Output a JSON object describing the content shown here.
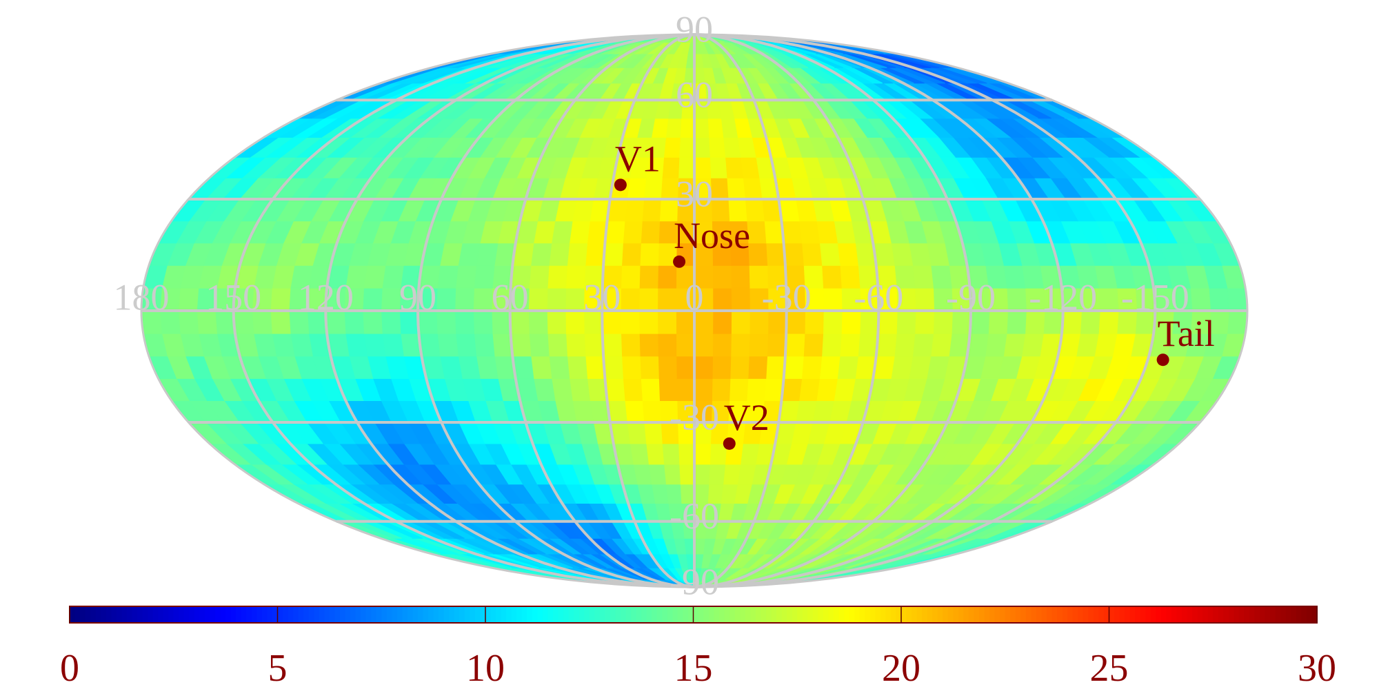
{
  "map": {
    "projection": "mollweide",
    "colormap": "jet",
    "longitude_labels": [
      "180",
      "150",
      "120",
      "90",
      "60",
      "30",
      "0",
      "-30",
      "-60",
      "-90",
      "-120",
      "-150"
    ],
    "latitude_labels": [
      "90",
      "60",
      "30",
      "-30",
      "-60",
      "-90"
    ],
    "markers": [
      {
        "name": "V1",
        "lon": 27,
        "lat": 34
      },
      {
        "name": "Nose",
        "lon": 5,
        "lat": 13
      },
      {
        "name": "V2",
        "lon": -13,
        "lat": -36
      },
      {
        "name": "Tail",
        "lon": -155,
        "lat": -13
      }
    ],
    "field_description_hotspots": [
      {
        "lon": -10,
        "lat": 10,
        "value": 22
      },
      {
        "lon": 0,
        "lat": -15,
        "value": 21
      },
      {
        "lon": -30,
        "lat": 15,
        "value": 19
      },
      {
        "lon": -135,
        "lat": -15,
        "value": 19
      },
      {
        "lon": 140,
        "lat": 5,
        "value": 16
      },
      {
        "lon": 110,
        "lat": -45,
        "value": 7
      },
      {
        "lon": 60,
        "lat": -70,
        "value": 7
      },
      {
        "lon": -130,
        "lat": 40,
        "value": 8
      },
      {
        "lon": -150,
        "lat": 70,
        "value": 6
      }
    ]
  },
  "colorbar": {
    "min": 0,
    "max": 30,
    "tick_labels": [
      "0",
      "5",
      "10",
      "15",
      "20",
      "25",
      "30"
    ]
  }
}
